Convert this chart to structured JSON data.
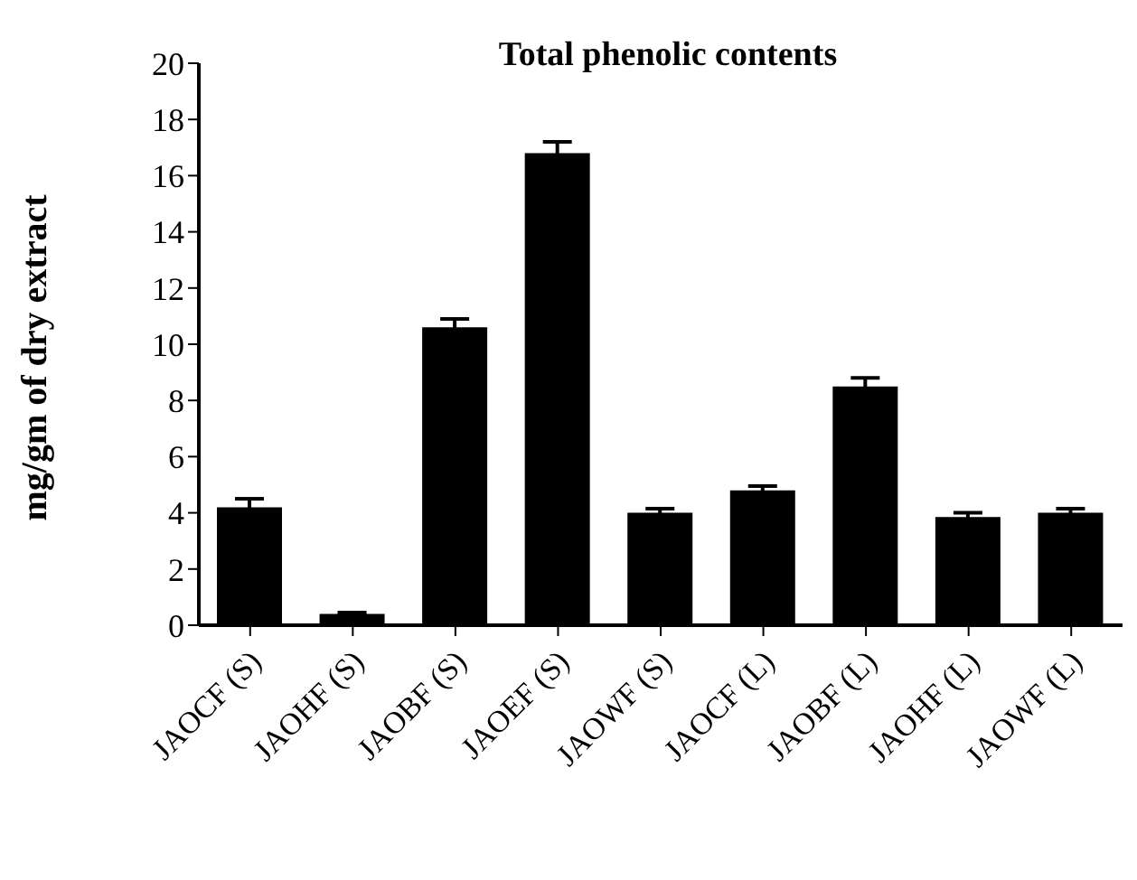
{
  "chart_data": {
    "type": "bar",
    "title": "Total phenolic contents",
    "ylabel": "mg/gm of dry extract",
    "categories": [
      "JAOCF (S)",
      "JAOHF (S)",
      "JAOBF (S)",
      "JAOEF (S)",
      "JAOWF (S)",
      "JAOCF (L)",
      "JAOBF (L)",
      "JAOHF (L)",
      "JAOWF (L)"
    ],
    "values": [
      4.2,
      0.4,
      10.6,
      16.8,
      4.0,
      4.8,
      8.5,
      3.85,
      4.0
    ],
    "errors": [
      0.3,
      0.05,
      0.3,
      0.4,
      0.15,
      0.15,
      0.3,
      0.15,
      0.15
    ],
    "color": "#000000",
    "ylim": [
      0,
      20
    ],
    "yticks": [
      0,
      2,
      4,
      6,
      8,
      10,
      12,
      14,
      16,
      18,
      20
    ],
    "grid": false,
    "legend": false
  }
}
